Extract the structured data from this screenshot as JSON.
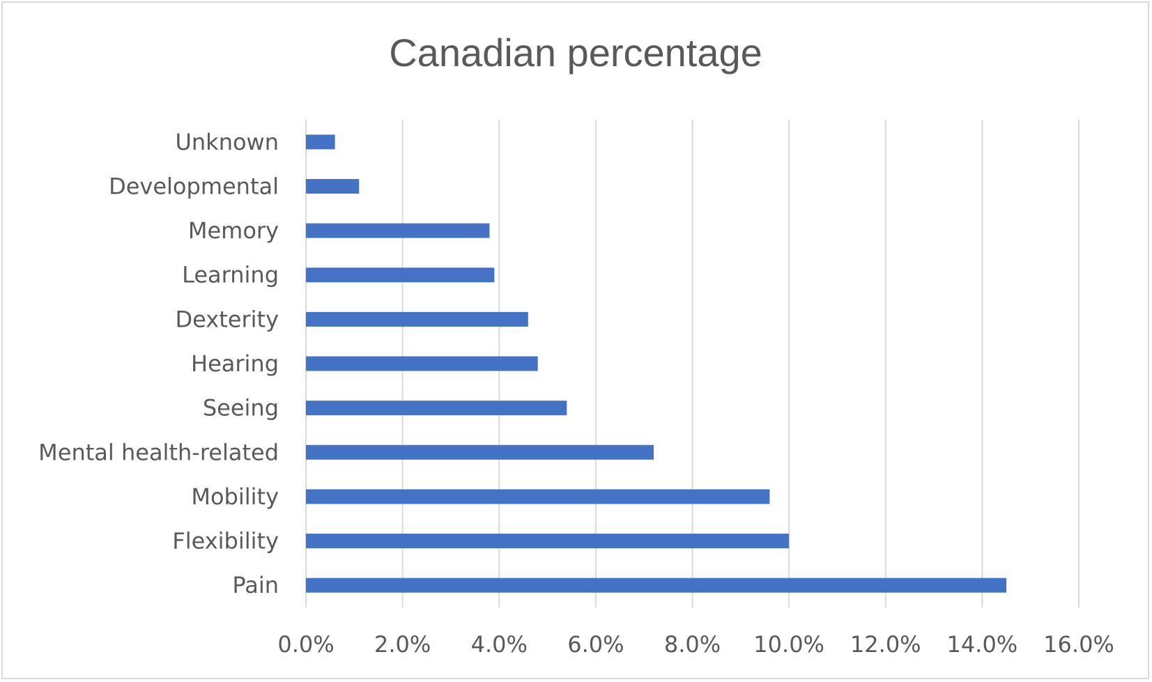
{
  "chart_data": {
    "type": "bar",
    "orientation": "horizontal",
    "title": "Canadian percentage",
    "categories": [
      "Pain",
      "Flexibility",
      "Mobility",
      "Mental health-related",
      "Seeing",
      "Hearing",
      "Dexterity",
      "Learning",
      "Memory",
      "Developmental",
      "Unknown"
    ],
    "values": [
      14.5,
      10.0,
      9.6,
      7.2,
      5.4,
      4.8,
      4.6,
      3.9,
      3.8,
      1.1,
      0.6
    ],
    "xlim": [
      0,
      16
    ],
    "xticks": [
      "0.0%",
      "2.0%",
      "4.0%",
      "6.0%",
      "8.0%",
      "10.0%",
      "12.0%",
      "14.0%",
      "16.0%"
    ],
    "xlabel": "",
    "ylabel": "",
    "grid": "vertical",
    "legend": "none",
    "bar_color": "#4472c4",
    "grid_color": "#d9d9d9",
    "text_color": "#595959"
  }
}
